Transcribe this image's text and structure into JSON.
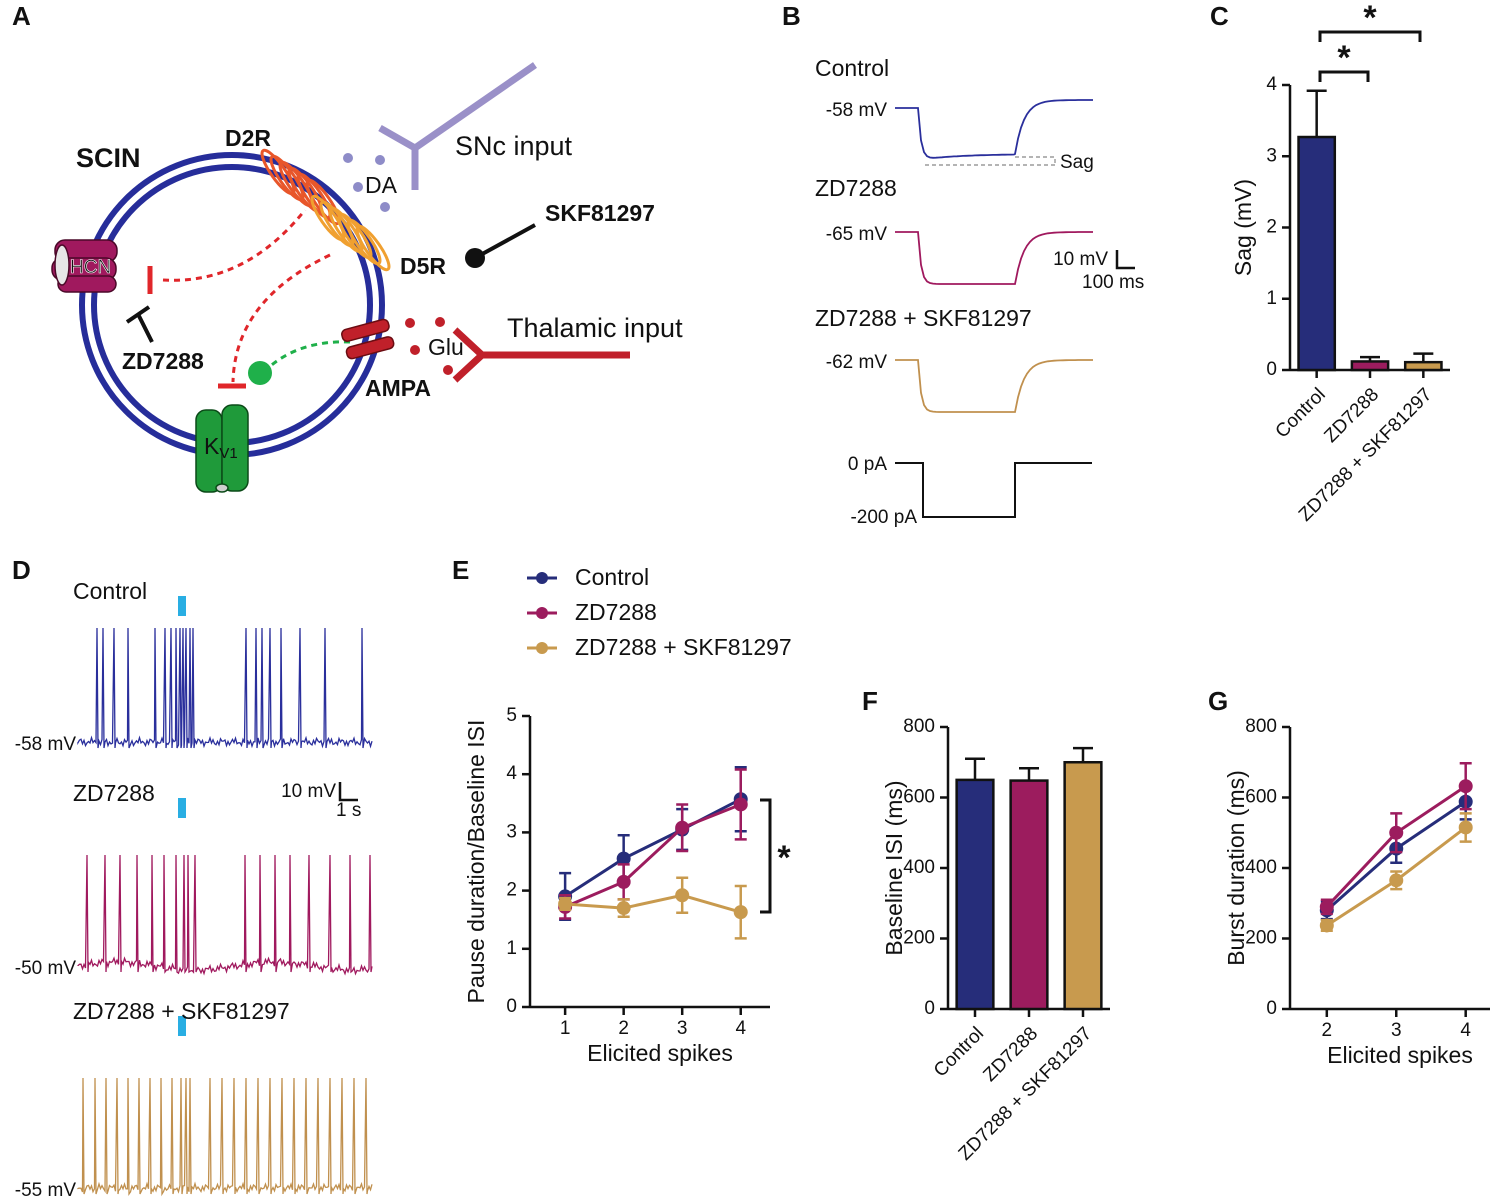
{
  "panels": [
    "A",
    "B",
    "C",
    "D",
    "E",
    "F",
    "G"
  ],
  "diagram": {
    "scin": "SCIN",
    "d2r": "D2R",
    "da": "DA",
    "snc": "SNc input",
    "skf": "SKF81297",
    "d5r": "D5R",
    "hcn": "HCN",
    "zd": "ZD7288",
    "glu": "Glu",
    "thalamic": "Thalamic input",
    "ampa": "AMPA",
    "kv": "K",
    "kv_sub": "V1"
  },
  "traces_b": {
    "conditions": [
      "Control",
      "ZD7288",
      "ZD7288 + SKF81297"
    ],
    "potentials": [
      "-58 mV",
      "-65 mV",
      "-62 mV"
    ],
    "sag": "Sag",
    "scale_v": "10 mV",
    "scale_t": "100 ms",
    "currents": [
      "0 pA",
      "-200 pA"
    ]
  },
  "traces_d": {
    "conditions": [
      "Control",
      "ZD7288",
      "ZD7288 + SKF81297"
    ],
    "potentials": [
      "-58 mV",
      "-50 mV",
      "-55 mV"
    ],
    "scale_v": "10 mV",
    "scale_t": "1 s"
  },
  "chart_data": [
    {
      "type": "bar",
      "categories": [
        "Control",
        "ZD7288",
        "ZD7288 + SKF81297"
      ],
      "values": [
        3.27,
        0.12,
        0.11
      ],
      "errors": [
        0.65,
        0.06,
        0.12
      ],
      "colors": [
        "#262d7a",
        "#9c1c5e",
        "#c89a4e"
      ],
      "ylabel": "Sag (mV)",
      "ylim": [
        0,
        4
      ],
      "yticks": [
        0,
        1,
        2,
        3,
        4
      ],
      "annotations": [
        "*",
        "*"
      ]
    },
    {
      "type": "line",
      "x": [
        1,
        2,
        3,
        4
      ],
      "series": [
        {
          "name": "Control",
          "color": "#262d7a",
          "values": [
            1.9,
            2.55,
            3.05,
            3.57
          ],
          "errors": [
            0.4,
            0.4,
            0.35,
            0.55
          ]
        },
        {
          "name": "ZD7288",
          "color": "#9c1c5e",
          "values": [
            1.72,
            2.15,
            3.08,
            3.48
          ],
          "errors": [
            0.2,
            0.3,
            0.4,
            0.6
          ]
        },
        {
          "name": "ZD7288 + SKF81297",
          "color": "#c89a4e",
          "values": [
            1.77,
            1.7,
            1.92,
            1.63
          ],
          "errors": [
            0.1,
            0.15,
            0.3,
            0.45
          ]
        }
      ],
      "xlabel": "Elicited spikes",
      "ylabel": "Pause duration/Baseline ISI",
      "xlim": [
        0.4,
        4.5
      ],
      "ylim": [
        0,
        5
      ],
      "xticks": [
        1,
        2,
        3,
        4
      ],
      "yticks": [
        0,
        1,
        2,
        3,
        4,
        5
      ],
      "annotations": [
        "*"
      ]
    },
    {
      "type": "bar",
      "categories": [
        "Control",
        "ZD7288",
        "ZD7288 + SKF81297"
      ],
      "values": [
        650,
        648,
        700
      ],
      "errors": [
        60,
        35,
        40
      ],
      "colors": [
        "#262d7a",
        "#9c1c5e",
        "#c89a4e"
      ],
      "ylabel": "Baseline ISI (ms)",
      "ylim": [
        0,
        800
      ],
      "yticks": [
        0,
        200,
        400,
        600,
        800
      ]
    },
    {
      "type": "line",
      "x": [
        2,
        3,
        4
      ],
      "series": [
        {
          "color": "#262d7a",
          "values": [
            280,
            455,
            588
          ],
          "errors": [
            25,
            40,
            50
          ]
        },
        {
          "color": "#9c1c5e",
          "values": [
            290,
            500,
            632
          ],
          "errors": [
            20,
            55,
            65
          ]
        },
        {
          "color": "#c89a4e",
          "values": [
            237,
            365,
            515
          ],
          "errors": [
            15,
            25,
            40
          ]
        }
      ],
      "xlabel": "Elicited spikes",
      "ylabel": "Burst duration (ms)",
      "xlim": [
        1.47,
        4.35
      ],
      "ylim": [
        0,
        800
      ],
      "xticks": [
        2,
        3,
        4
      ],
      "yticks": [
        0,
        200,
        400,
        600,
        800
      ]
    }
  ]
}
